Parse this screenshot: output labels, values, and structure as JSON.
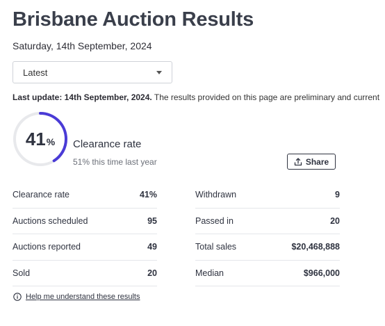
{
  "header": {
    "title": "Brisbane Auction Results",
    "date": "Saturday, 14th September, 2024"
  },
  "filter": {
    "selected": "Latest"
  },
  "update_notice": {
    "bold": "Last update: 14th September, 2024.",
    "text": " The results provided on this page are preliminary and current"
  },
  "clearance": {
    "value": "41",
    "percent_sign": "%",
    "fraction": 0.41,
    "label": "Clearance rate",
    "last_year": "51% this time last year",
    "accent_color": "#4a3bd6",
    "track_color": "#e8e9ec"
  },
  "share": {
    "label": "Share",
    "icon": "share-icon"
  },
  "stats_left": [
    {
      "label": "Clearance rate",
      "value": "41%"
    },
    {
      "label": "Auctions scheduled",
      "value": "95"
    },
    {
      "label": "Auctions reported",
      "value": "49"
    },
    {
      "label": "Sold",
      "value": "20"
    }
  ],
  "stats_right": [
    {
      "label": "Withdrawn",
      "value": "9"
    },
    {
      "label": "Passed in",
      "value": "20"
    },
    {
      "label": "Total sales",
      "value": "$20,468,888"
    },
    {
      "label": "Median",
      "value": "$966,000"
    }
  ],
  "help": {
    "label": "Help me understand these results",
    "icon": "info-icon"
  }
}
